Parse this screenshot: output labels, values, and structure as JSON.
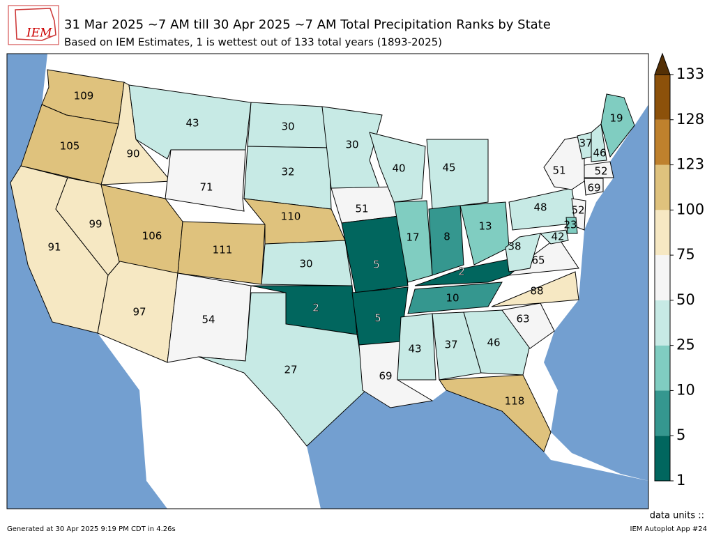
{
  "header": {
    "logo": "IEM",
    "title": "31 Mar 2025 ~7 AM till 30 Apr 2025 ~7 AM Total Precipitation Ranks by State",
    "subtitle": "Based on IEM Estimates, 1 is wettest out of 133 total years (1893-2025)"
  },
  "map": {
    "ranks": [
      109,
      105,
      91,
      99,
      90,
      43,
      71,
      106,
      111,
      97,
      54,
      30,
      32,
      110,
      30,
      2,
      27,
      30,
      51,
      5,
      5,
      69,
      40,
      17,
      45,
      8,
      13,
      2,
      10,
      43,
      37,
      46,
      118,
      63,
      88,
      65,
      38,
      48,
      51,
      52,
      23,
      42,
      37,
      46,
      19,
      52,
      69
    ]
  },
  "colorbar": {
    "bounds": [
      1,
      5,
      10,
      25,
      50,
      75,
      100,
      123,
      128,
      133
    ],
    "colors": [
      "#01665e",
      "#35978f",
      "#80cdc1",
      "#c7eae5",
      "#f5f5f5",
      "#f6e8c3",
      "#dfc27d",
      "#bf812d",
      "#8c510a"
    ],
    "extend_color": "#543005"
  },
  "footer": {
    "units": "data units ::",
    "generated": "Generated at 30 Apr 2025 9:19 PM CDT in 4.26s",
    "app": "IEM Autoplot App #24"
  }
}
